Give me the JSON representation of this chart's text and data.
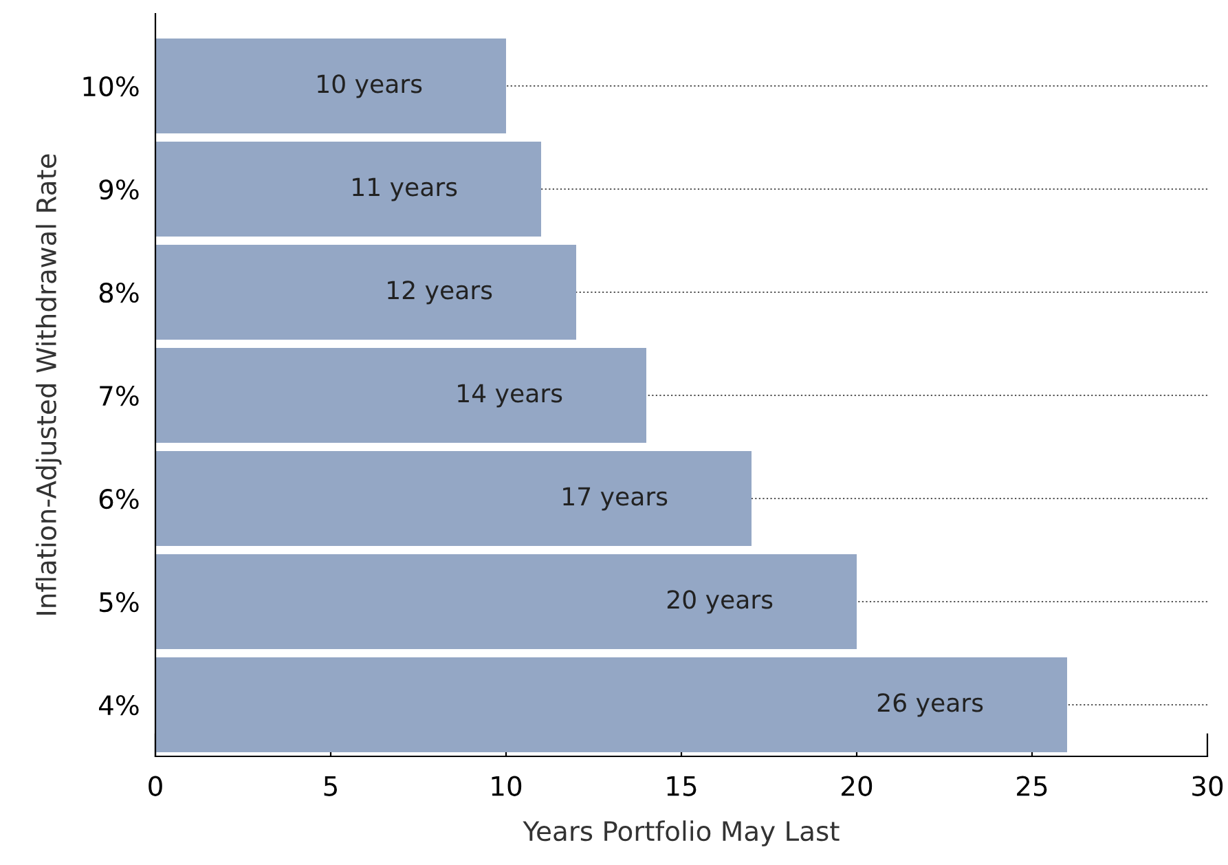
{
  "chart_data": {
    "type": "bar",
    "orientation": "horizontal",
    "xlabel": "Years Portfolio May Last",
    "ylabel": "Inflation-Adjusted Withdrawal Rate",
    "categories": [
      "10%",
      "9%",
      "8%",
      "7%",
      "6%",
      "5%",
      "4%"
    ],
    "values": [
      10,
      11,
      12,
      14,
      17,
      20,
      26
    ],
    "value_labels": [
      "10 years",
      "11 years",
      "12 years",
      "14 years",
      "17 years",
      "20 years",
      "26 years"
    ],
    "color": "#94a7c5",
    "xlim": [
      0,
      30
    ],
    "xticks": [
      0,
      5,
      10,
      15,
      20,
      25,
      30
    ],
    "grid": "y",
    "legend": false
  }
}
